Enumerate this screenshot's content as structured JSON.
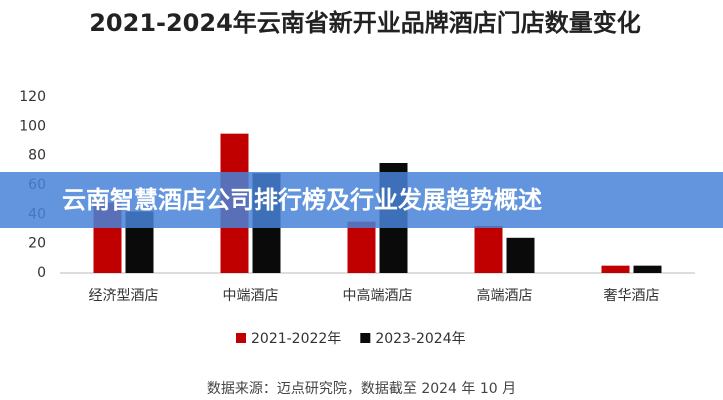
{
  "banner": "云南智慧酒店公司排行榜及行业发展趋势概述",
  "chart_data": {
    "type": "bar",
    "title": "2021-2024年云南省新开业品牌酒店门店数量变化",
    "source": "数据来源：迈点研究院，数据截至 2024 年 10 月",
    "categories": [
      "经济型酒店",
      "中端酒店",
      "中高端酒店",
      "高端酒店",
      "奢华酒店"
    ],
    "series": [
      {
        "name": "2021-2022年",
        "color": "#c00000",
        "values": [
          48,
          95,
          35,
          32,
          5
        ]
      },
      {
        "name": "2023-2024年",
        "color": "#0a0a0a",
        "values": [
          42,
          68,
          75,
          24,
          5
        ]
      }
    ],
    "ylim": [
      0,
      120
    ],
    "yticks": [
      0,
      20,
      40,
      60,
      80,
      100,
      120
    ],
    "grid": false
  }
}
